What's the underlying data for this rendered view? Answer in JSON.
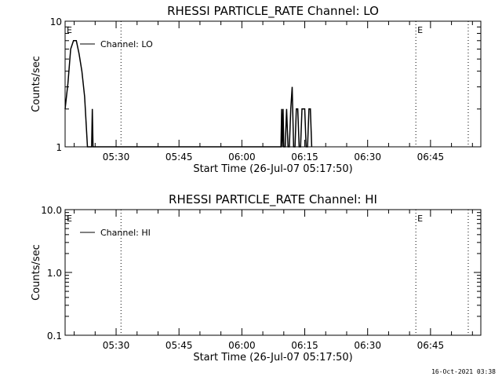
{
  "footer": {
    "generated": "16-Oct-2021 03:38"
  },
  "chart_data": [
    {
      "type": "line",
      "title": "RHESSI PARTICLE_RATE Channel: LO",
      "xlabel": "Start Time (26-Jul-07 05:17:50)",
      "ylabel": "Counts/sec",
      "y_scale": "log",
      "ylim": [
        1,
        10
      ],
      "xlim": [
        "05:17:50",
        "06:57:00"
      ],
      "x_tick_labels": [
        "05:30",
        "05:45",
        "06:00",
        "06:15",
        "06:30",
        "06:45"
      ],
      "x_ticks_minutes": [
        30,
        45,
        60,
        75,
        90,
        105
      ],
      "y_tick_labels": [
        "1",
        "10"
      ],
      "y_ticks": [
        1,
        10
      ],
      "legend": {
        "position": "top-left",
        "entries": [
          "Channel: LO"
        ]
      },
      "annotations": [
        {
          "text": "E",
          "x": "05:17:50"
        },
        {
          "text": "E",
          "x": "06:41:30"
        }
      ],
      "vlines": [
        "05:31:10",
        "06:41:30",
        "06:54:00"
      ],
      "series": [
        {
          "name": "Channel: LO",
          "x": [
            "05:17:50",
            "05:18:30",
            "05:19:10",
            "05:19:50",
            "05:20:30",
            "05:21:10",
            "05:21:50",
            "05:22:30",
            "05:23:10",
            "05:23:50",
            "05:24:10",
            "05:24:20",
            "05:24:30",
            "05:24:40",
            "05:24:50",
            "05:25:00",
            "06:09:20",
            "06:09:30",
            "06:09:40",
            "06:09:50",
            "06:10:00",
            "06:10:20",
            "06:10:40",
            "06:11:00",
            "06:11:20",
            "06:11:40",
            "06:12:00",
            "06:12:20",
            "06:12:40",
            "06:13:00",
            "06:13:20",
            "06:13:40",
            "06:14:00",
            "06:14:20",
            "06:14:40",
            "06:15:00",
            "06:15:20",
            "06:15:40",
            "06:16:00",
            "06:16:20",
            "06:16:40"
          ],
          "values": [
            2.0,
            3.2,
            6.0,
            7.0,
            7.0,
            5.5,
            4.0,
            2.5,
            1.0,
            1.0,
            1.0,
            2.0,
            1.0,
            1.0,
            1.0,
            1.0,
            1.0,
            2.0,
            1.0,
            2.0,
            1.0,
            1.0,
            2.0,
            1.0,
            1.0,
            2.0,
            3.0,
            1.0,
            1.0,
            2.0,
            2.0,
            1.0,
            1.0,
            2.0,
            2.0,
            2.0,
            1.0,
            1.0,
            2.0,
            2.0,
            1.0
          ]
        }
      ]
    },
    {
      "type": "line",
      "title": "RHESSI PARTICLE_RATE Channel: HI",
      "xlabel": "Start Time (26-Jul-07 05:17:50)",
      "ylabel": "Counts/sec",
      "y_scale": "log",
      "ylim": [
        0.1,
        10.0
      ],
      "xlim": [
        "05:17:50",
        "06:57:00"
      ],
      "x_tick_labels": [
        "05:30",
        "05:45",
        "06:00",
        "06:15",
        "06:30",
        "06:45"
      ],
      "x_ticks_minutes": [
        30,
        45,
        60,
        75,
        90,
        105
      ],
      "y_tick_labels": [
        "0.1",
        "1.0",
        "10.0"
      ],
      "y_ticks": [
        0.1,
        1.0,
        10.0
      ],
      "legend": {
        "position": "top-left",
        "entries": [
          "Channel: HI"
        ]
      },
      "annotations": [
        {
          "text": "E",
          "x": "05:17:50"
        },
        {
          "text": "E",
          "x": "06:41:30"
        }
      ],
      "vlines": [
        "05:31:10",
        "06:41:30",
        "06:54:00"
      ],
      "series": [
        {
          "name": "Channel: HI",
          "x": [],
          "values": []
        }
      ]
    }
  ]
}
